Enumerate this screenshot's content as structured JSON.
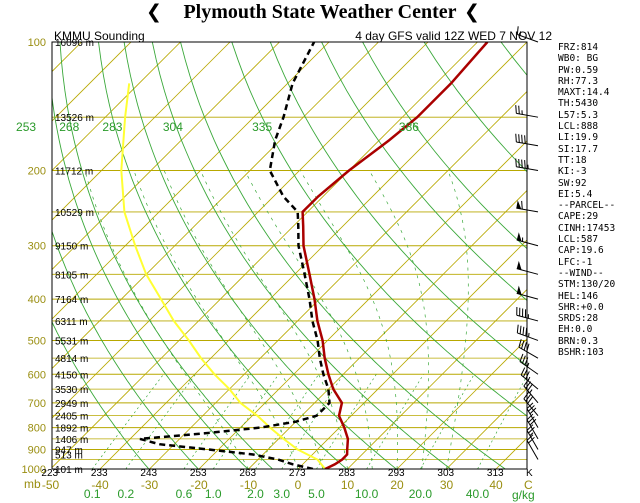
{
  "banner": {
    "title": "Plymouth State Weather Center",
    "left_icon": "wind-barb-icon",
    "right_icon": "wind-barb-icon"
  },
  "header": {
    "station": "KMMU Sounding",
    "model_run": "4 day GFS valid 12Z WED 7 NOV 12"
  },
  "units": {
    "pressure": "mb",
    "mixing_ratio": "g/kg",
    "temperature": "C",
    "kelvin": "K"
  },
  "colors": {
    "isobar": "#b8a800",
    "isotherm": "#b8a800",
    "dry_adiabat": "#3aa83a",
    "moist_adiabat": "#3aa83a",
    "mixing_ratio": "#3aa83a",
    "temperature": "#aa0000",
    "dewpoint": "#000000",
    "parcel": "#ffff33"
  },
  "chart_data": {
    "type": "skew-t",
    "pressure_levels": [
      100,
      200,
      300,
      400,
      500,
      600,
      700,
      800,
      900,
      1000
    ],
    "height_labels": [
      {
        "p": 100,
        "label": "16096 m"
      },
      {
        "p": 150,
        "label": "13526 m"
      },
      {
        "p": 200,
        "label": "11712 m"
      },
      {
        "p": 250,
        "label": "10529 m"
      },
      {
        "p": 300,
        "label": "9150 m"
      },
      {
        "p": 350,
        "label": "8105 m"
      },
      {
        "p": 400,
        "label": "7164 m"
      },
      {
        "p": 450,
        "label": "6311 m"
      },
      {
        "p": 500,
        "label": "5531 m"
      },
      {
        "p": 550,
        "label": "4814 m"
      },
      {
        "p": 600,
        "label": "4150 m"
      },
      {
        "p": 650,
        "label": "3530 m"
      },
      {
        "p": 700,
        "label": "2949 m"
      },
      {
        "p": 750,
        "label": "2405 m"
      },
      {
        "p": 800,
        "label": "1892 m"
      },
      {
        "p": 850,
        "label": "1406 m"
      },
      {
        "p": 900,
        "label": "947 m"
      },
      {
        "p": 925,
        "label": "513 m"
      },
      {
        "p": 1000,
        "label": "101 m"
      }
    ],
    "temp_ticks_c": [
      -50,
      -40,
      -30,
      -20,
      -10,
      0,
      10,
      20,
      30,
      40
    ],
    "temp_tick_labels": [
      "-50",
      "-40",
      "-30",
      "-20",
      "-10",
      "0",
      "10",
      "20",
      "30",
      "40"
    ],
    "kelvin_ticks": [
      223,
      233,
      243,
      253,
      263,
      273,
      283,
      293,
      303,
      313
    ],
    "kelvin_tick_labels": [
      "223",
      "233",
      "243",
      "253",
      "263",
      "273",
      "283",
      "293",
      "303",
      "313"
    ],
    "theta_labels": [
      {
        "theta": 253,
        "label": "253"
      },
      {
        "theta": 268,
        "label": "268"
      },
      {
        "theta": 283,
        "label": "283"
      },
      {
        "theta": 304,
        "label": "304"
      },
      {
        "theta": 335,
        "label": "335"
      },
      {
        "theta": 386,
        "label": "386"
      }
    ],
    "mixing_ratio_ticks": [
      0.1,
      0.2,
      0.6,
      1.0,
      2.0,
      3.0,
      5.0,
      10.0,
      20.0,
      40.0
    ],
    "mixing_ratio_tick_labels": [
      "0.1",
      "0.2",
      "0.6",
      "1.0",
      "2.0",
      "3.0",
      "5.0",
      "10.0",
      "20.0",
      "40.0"
    ],
    "temperature_profile": [
      {
        "p": 1000,
        "t": 5.5
      },
      {
        "p": 975,
        "t": 6.5
      },
      {
        "p": 950,
        "t": 7
      },
      {
        "p": 925,
        "t": 7
      },
      {
        "p": 900,
        "t": 6
      },
      {
        "p": 850,
        "t": 4
      },
      {
        "p": 800,
        "t": 1
      },
      {
        "p": 750,
        "t": -2.5
      },
      {
        "p": 700,
        "t": -4.5
      },
      {
        "p": 650,
        "t": -9
      },
      {
        "p": 600,
        "t": -13
      },
      {
        "p": 550,
        "t": -17
      },
      {
        "p": 500,
        "t": -21
      },
      {
        "p": 450,
        "t": -26
      },
      {
        "p": 400,
        "t": -31
      },
      {
        "p": 350,
        "t": -37
      },
      {
        "p": 300,
        "t": -44
      },
      {
        "p": 270,
        "t": -48
      },
      {
        "p": 250,
        "t": -51
      },
      {
        "p": 230,
        "t": -51
      },
      {
        "p": 200,
        "t": -50
      },
      {
        "p": 170,
        "t": -48
      },
      {
        "p": 150,
        "t": -47
      },
      {
        "p": 125,
        "t": -47
      },
      {
        "p": 100,
        "t": -48
      }
    ],
    "dewpoint_profile": [
      {
        "p": 1000,
        "t": 3
      },
      {
        "p": 975,
        "t": -2
      },
      {
        "p": 950,
        "t": -6
      },
      {
        "p": 925,
        "t": -12
      },
      {
        "p": 900,
        "t": -22
      },
      {
        "p": 875,
        "t": -33
      },
      {
        "p": 850,
        "t": -38
      },
      {
        "p": 825,
        "t": -26
      },
      {
        "p": 800,
        "t": -16
      },
      {
        "p": 775,
        "t": -10
      },
      {
        "p": 750,
        "t": -7
      },
      {
        "p": 700,
        "t": -7
      },
      {
        "p": 650,
        "t": -10
      },
      {
        "p": 600,
        "t": -14
      },
      {
        "p": 550,
        "t": -18
      },
      {
        "p": 500,
        "t": -22
      },
      {
        "p": 450,
        "t": -27
      },
      {
        "p": 400,
        "t": -32
      },
      {
        "p": 350,
        "t": -38
      },
      {
        "p": 300,
        "t": -45
      },
      {
        "p": 270,
        "t": -49
      },
      {
        "p": 250,
        "t": -52
      },
      {
        "p": 230,
        "t": -58
      },
      {
        "p": 200,
        "t": -66
      },
      {
        "p": 170,
        "t": -71
      },
      {
        "p": 150,
        "t": -74
      },
      {
        "p": 125,
        "t": -79
      },
      {
        "p": 100,
        "t": -83
      }
    ],
    "parcel_profile": [
      {
        "p": 1000,
        "t": 5.5
      },
      {
        "p": 950,
        "t": 2
      },
      {
        "p": 900,
        "t": -4
      },
      {
        "p": 850,
        "t": -9
      },
      {
        "p": 800,
        "t": -14
      },
      {
        "p": 750,
        "t": -19
      },
      {
        "p": 700,
        "t": -25
      },
      {
        "p": 650,
        "t": -30
      },
      {
        "p": 600,
        "t": -36
      },
      {
        "p": 550,
        "t": -42
      },
      {
        "p": 500,
        "t": -48
      },
      {
        "p": 450,
        "t": -55
      },
      {
        "p": 400,
        "t": -62
      },
      {
        "p": 350,
        "t": -70
      },
      {
        "p": 300,
        "t": -78
      },
      {
        "p": 250,
        "t": -87
      },
      {
        "p": 200,
        "t": -96
      },
      {
        "p": 150,
        "t": -106
      },
      {
        "p": 125,
        "t": -112
      }
    ],
    "wind_barbs": [
      {
        "p": 100,
        "dir": 290,
        "kt": 15
      },
      {
        "p": 150,
        "dir": 280,
        "kt": 25
      },
      {
        "p": 175,
        "dir": 280,
        "kt": 40
      },
      {
        "p": 200,
        "dir": 280,
        "kt": 45
      },
      {
        "p": 250,
        "dir": 280,
        "kt": 60
      },
      {
        "p": 300,
        "dir": 285,
        "kt": 55
      },
      {
        "p": 350,
        "dir": 285,
        "kt": 50
      },
      {
        "p": 400,
        "dir": 285,
        "kt": 50
      },
      {
        "p": 450,
        "dir": 285,
        "kt": 45
      },
      {
        "p": 500,
        "dir": 290,
        "kt": 45
      },
      {
        "p": 550,
        "dir": 300,
        "kt": 40
      },
      {
        "p": 600,
        "dir": 305,
        "kt": 35
      },
      {
        "p": 650,
        "dir": 310,
        "kt": 35
      },
      {
        "p": 700,
        "dir": 320,
        "kt": 35
      },
      {
        "p": 750,
        "dir": 320,
        "kt": 30
      },
      {
        "p": 800,
        "dir": 330,
        "kt": 30
      },
      {
        "p": 850,
        "dir": 330,
        "kt": 30
      },
      {
        "p": 900,
        "dir": 330,
        "kt": 25
      },
      {
        "p": 950,
        "dir": 330,
        "kt": 20
      }
    ]
  },
  "stats": [
    "FRZ:814",
    "WB0: BG",
    "PW:0.59",
    "RH:77.3",
    "MAXT:14.4",
    "TH:5430",
    "L57:5.3",
    "LCL:888",
    "LI:19.9",
    "SI:17.7",
    "TT:18",
    "KI:-3",
    "SW:92",
    "EI:5.4",
    "--PARCEL--",
    "CAPE:29",
    "CINH:17453",
    "LCL:587",
    "CAP:19.6",
    "LFC:-1",
    "--WIND--",
    "STM:130/20",
    "HEL:146",
    "SHR:+0.0",
    "SRDS:28",
    "EH:0.0",
    "BRN:0.3",
    "BSHR:103"
  ]
}
